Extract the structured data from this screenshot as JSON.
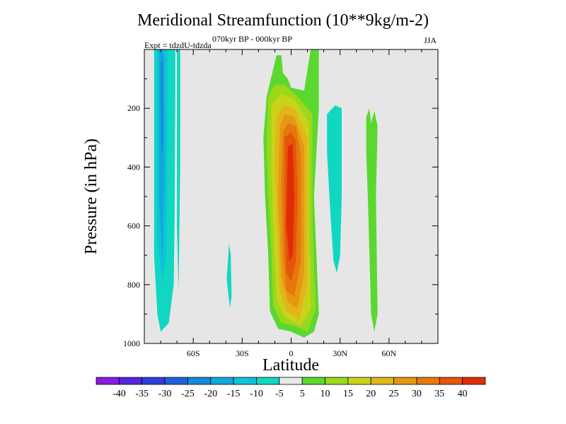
{
  "chart_data": {
    "type": "contour",
    "title": "Meridional Streamfunction (10**9kg/m-2)",
    "subtitle": "070kyr BP - 000kyr BP",
    "experiment": "Expt = tdzdU-tdzda",
    "season": "JJA",
    "xlabel": "Latitude",
    "ylabel": "Pressure (in hPa)",
    "xlim": [
      -90,
      90
    ],
    "ylim": [
      1000,
      0
    ],
    "x_ticks": [
      {
        "value": -60,
        "label": "60S"
      },
      {
        "value": -30,
        "label": "30S"
      },
      {
        "value": 0,
        "label": "0"
      },
      {
        "value": 30,
        "label": "30N"
      },
      {
        "value": 60,
        "label": "60N"
      }
    ],
    "y_ticks": [
      {
        "value": 200,
        "label": "200"
      },
      {
        "value": 400,
        "label": "400"
      },
      {
        "value": 600,
        "label": "600"
      },
      {
        "value": 800,
        "label": "800"
      },
      {
        "value": 1000,
        "label": "1000"
      }
    ],
    "colorbar": {
      "levels": [
        -40,
        -35,
        -30,
        -25,
        -20,
        -15,
        -10,
        -5,
        5,
        10,
        15,
        20,
        25,
        30,
        35,
        40
      ],
      "labels": [
        "-40",
        "-35",
        "-30",
        "-25",
        "-20",
        "-15",
        "-10",
        "-5",
        "5",
        "10",
        "15",
        "20",
        "25",
        "30",
        "35",
        "40"
      ],
      "colors": [
        "#8a1be0",
        "#5326dc",
        "#2f3dd8",
        "#1f63d6",
        "#1689dc",
        "#10a8dc",
        "#0fc2d8",
        "#10d7c1",
        "#e8e8e8",
        "#5bd82f",
        "#9bd81a",
        "#c9d31c",
        "#e2b61a",
        "#e79812",
        "#e6780e",
        "#e5550a",
        "#e02c06"
      ]
    },
    "regions": [
      {
        "name": "southern-polar-negative-cell",
        "outer_value": -10,
        "core_value": -30,
        "lat": [
          -84,
          -71
        ],
        "pressure": [
          0,
          960
        ]
      },
      {
        "name": "hadley-cell-positive-core",
        "outer_value": 5,
        "core_value": 40,
        "lat": [
          -17,
          17
        ],
        "pressure": [
          20,
          980
        ]
      },
      {
        "name": "northern-positive-band-1",
        "outer_value": 5,
        "core_value": 5,
        "lat": [
          12,
          17
        ],
        "pressure": [
          0,
          100
        ]
      },
      {
        "name": "northern-negative-cell",
        "outer_value": -10,
        "core_value": -10,
        "lat": [
          22,
          31
        ],
        "pressure": [
          200,
          750
        ]
      },
      {
        "name": "northern-positive-band-2",
        "outer_value": 5,
        "core_value": 5,
        "lat": [
          46,
          53
        ],
        "pressure": [
          200,
          960
        ]
      },
      {
        "name": "southern-negative-spot",
        "outer_value": -10,
        "core_value": -10,
        "lat": [
          -40,
          -36
        ],
        "pressure": [
          660,
          880
        ]
      }
    ]
  }
}
